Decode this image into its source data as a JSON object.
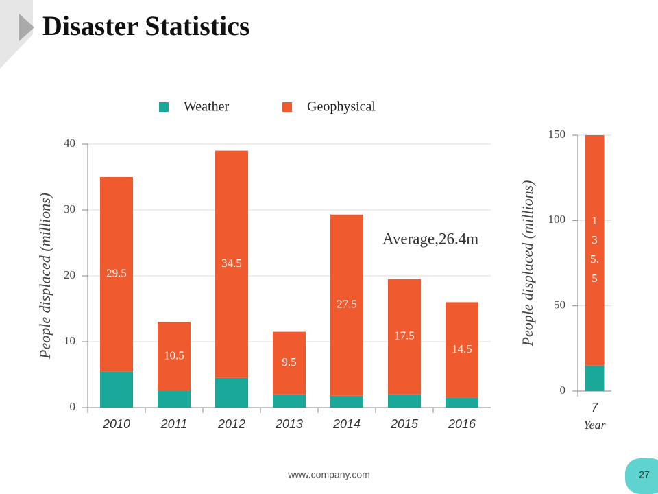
{
  "header": {
    "title": "Disaster Statistics"
  },
  "chart_data": [
    {
      "type": "bar",
      "stacked": true,
      "categories": [
        "2010",
        "2011",
        "2012",
        "2013",
        "2014",
        "2015",
        "2016"
      ],
      "series": [
        {
          "name": "Weather",
          "color": "#1aa89a",
          "values": [
            5.5,
            2.5,
            4.5,
            2,
            1.8,
            2,
            1.5
          ]
        },
        {
          "name": "Geophysical",
          "color": "#ef5a2f",
          "values": [
            29.5,
            10.5,
            34.5,
            9.5,
            27.5,
            17.5,
            14.5
          ],
          "show_labels": true
        }
      ],
      "ylabel": "People displaced (millions)",
      "annotation": "Average,26.4m",
      "ylim": [
        0,
        40
      ],
      "yticks": [
        0,
        10,
        20,
        30,
        40
      ],
      "grid": true,
      "legend": "top"
    },
    {
      "type": "bar",
      "stacked": true,
      "categories": [
        "7"
      ],
      "series": [
        {
          "name": "Weather",
          "color": "#1aa89a",
          "values": [
            15
          ]
        },
        {
          "name": "Geophysical",
          "color": "#ef5a2f",
          "values": [
            135.5
          ],
          "show_labels": true
        }
      ],
      "xlabel": "Year",
      "ylabel": "People displaced (millions)",
      "ylim": [
        0,
        150
      ],
      "yticks": [
        0,
        50,
        100,
        150
      ],
      "grid": true
    }
  ],
  "footer": {
    "url": "www.company.com",
    "page": "27"
  }
}
